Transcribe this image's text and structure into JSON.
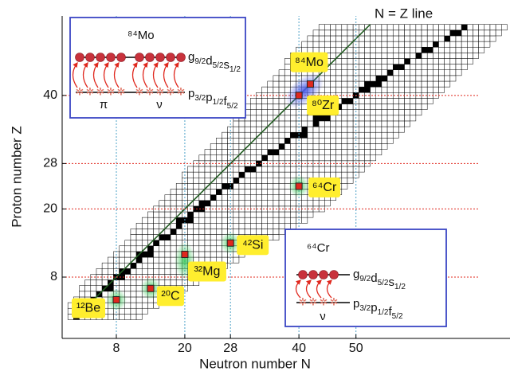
{
  "chart_data": {
    "type": "scatter",
    "xlabel": "Neutron number N",
    "ylabel": "Proton number Z",
    "xlim": [
      -1.5,
      77
    ],
    "ylim": [
      -2.8,
      54
    ],
    "xticks": [
      8,
      20,
      28,
      40,
      50
    ],
    "yticks": [
      8,
      20,
      28,
      40
    ],
    "line_label": "N = Z line",
    "color": "#e0281e",
    "points": {
      "x": [
        8,
        14,
        20,
        28,
        40,
        40,
        42
      ],
      "y": [
        4,
        6,
        12,
        14,
        24,
        40,
        42
      ],
      "labels": [
        "¹²Be",
        "²⁰C",
        "³²Mg",
        "⁴²Si",
        "⁶⁴Cr",
        "⁸⁰Zr",
        "⁸⁴Mo"
      ]
    }
  },
  "insets": [
    {
      "nucleus": "⁸⁴Mo",
      "upper": [
        [
          "g",
          "9/2"
        ],
        [
          "d",
          "5/2"
        ],
        [
          "s",
          "1/2"
        ]
      ],
      "lower": [
        [
          "p",
          "3/2"
        ],
        [
          "p",
          "1/2"
        ],
        [
          "f",
          "5/2"
        ]
      ],
      "groups": [
        "π",
        "ν"
      ]
    },
    {
      "nucleus": "⁶⁴Cr",
      "upper": [
        [
          "g",
          "9/2"
        ],
        [
          "d",
          "5/2"
        ],
        [
          "s",
          "1/2"
        ]
      ],
      "lower": [
        [
          "p",
          "3/2"
        ],
        [
          "p",
          "1/2"
        ],
        [
          "f",
          "5/2"
        ]
      ],
      "groups": [
        "ν"
      ]
    }
  ]
}
